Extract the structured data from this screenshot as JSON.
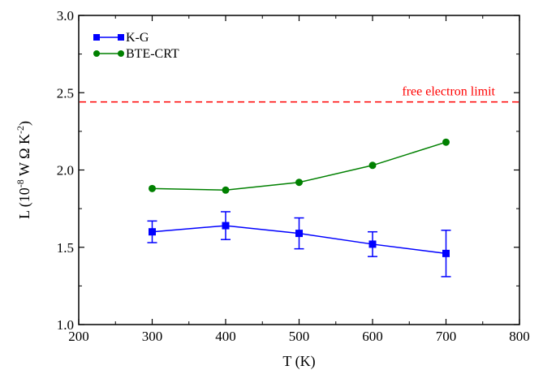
{
  "chart_data": {
    "type": "line",
    "x_label": "T (K)",
    "y_label": {
      "base": "L (10",
      "exp1": "-8",
      "middle": " W Ω K",
      "exp2": "-2",
      "end": ")"
    },
    "xlim": [
      200,
      800
    ],
    "ylim": [
      1.0,
      3.0
    ],
    "x_ticks": [
      200,
      300,
      400,
      500,
      600,
      700,
      800
    ],
    "y_ticks": [
      1.0,
      1.5,
      2.0,
      2.5,
      3.0
    ],
    "x_tick_labels": [
      "200",
      "300",
      "400",
      "500",
      "600",
      "700",
      "800"
    ],
    "y_tick_labels": [
      "1.0",
      "1.5",
      "2.0",
      "2.5",
      "3.0"
    ],
    "grid": false,
    "legend_position": "top-left",
    "series": [
      {
        "name": "K-G",
        "color": "#0000ff",
        "marker": "square",
        "x": [
          300,
          400,
          500,
          600,
          700
        ],
        "y": [
          1.6,
          1.64,
          1.59,
          1.52,
          1.46
        ],
        "err_low": [
          1.53,
          1.55,
          1.49,
          1.44,
          1.31
        ],
        "err_high": [
          1.67,
          1.73,
          1.69,
          1.6,
          1.61
        ]
      },
      {
        "name": "BTE-CRT",
        "color": "#008000",
        "marker": "circle",
        "x": [
          300,
          400,
          500,
          600,
          700
        ],
        "y": [
          1.88,
          1.87,
          1.92,
          2.03,
          2.18
        ]
      }
    ],
    "reference_line": {
      "y": 2.44,
      "label": "free electron limit",
      "color": "#ff0000",
      "style": "dashed"
    }
  }
}
